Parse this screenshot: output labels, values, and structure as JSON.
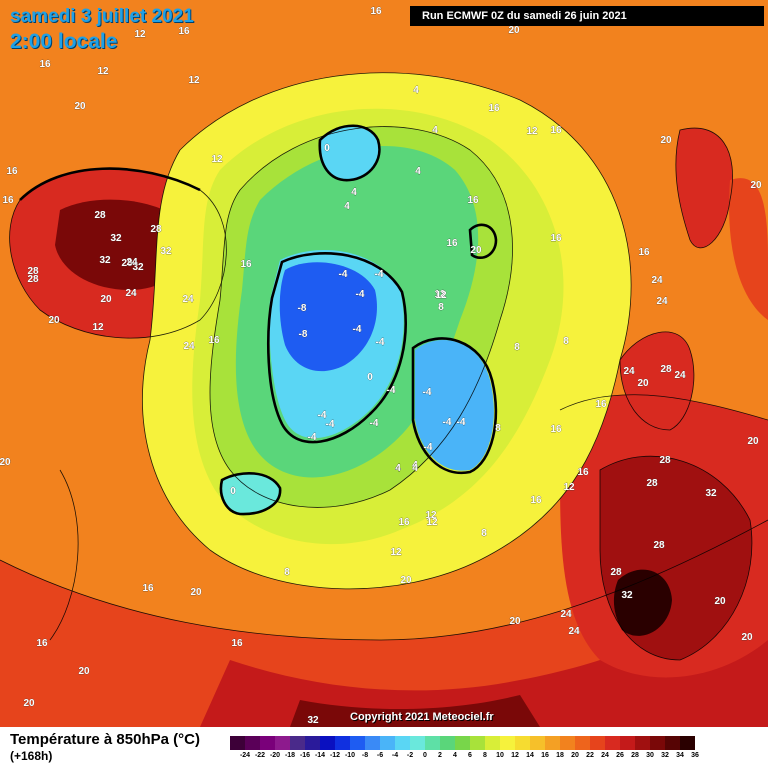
{
  "header": {
    "date": "samedi 3 juillet 2021",
    "time": "2:00 locale",
    "run": "Run ECMWF 0Z du samedi 26 juin 2021"
  },
  "copyright": "Copyright 2021 Meteociel.fr",
  "legend": {
    "title": "Température à 850hPa (°C)",
    "subtitle": "(+168h)",
    "ticks": [
      "-24",
      "-22",
      "-20",
      "-18",
      "-16",
      "-14",
      "-12",
      "-10",
      "-8",
      "-6",
      "-4",
      "-2",
      "0",
      "2",
      "4",
      "6",
      "8",
      "10",
      "12",
      "14",
      "16",
      "18",
      "20",
      "22",
      "24",
      "26",
      "28",
      "30",
      "32",
      "34",
      "36"
    ],
    "colors": [
      "#3d0038",
      "#5a0058",
      "#7a007a",
      "#8d1a8d",
      "#4a2a8a",
      "#2a1a9a",
      "#0a10c0",
      "#1030e0",
      "#1e5cf2",
      "#3a8af6",
      "#4ab4f8",
      "#5ad6f4",
      "#6ae8dc",
      "#5ee0a6",
      "#5ad67a",
      "#78d64a",
      "#a8e23a",
      "#d8ee38",
      "#f6f23c",
      "#f6dc30",
      "#f6c02a",
      "#f4a024",
      "#f2821e",
      "#ee641c",
      "#e6441c",
      "#d82a20",
      "#c41a1a",
      "#a01010",
      "#7a0808",
      "#560404",
      "#2a0000"
    ]
  },
  "map_labels": [
    {
      "t": "16"
    },
    {
      "t": "12"
    },
    {
      "t": "16"
    },
    {
      "t": "12"
    },
    {
      "t": "16"
    },
    {
      "t": "12"
    },
    {
      "t": "20"
    },
    {
      "t": "20"
    },
    {
      "t": "16"
    },
    {
      "t": "16"
    },
    {
      "t": "12"
    },
    {
      "t": "12"
    },
    {
      "t": "16"
    },
    {
      "t": "16"
    },
    {
      "t": "20"
    },
    {
      "t": "28"
    },
    {
      "t": "32"
    },
    {
      "t": "28"
    },
    {
      "t": "28"
    },
    {
      "t": "32"
    },
    {
      "t": "32"
    },
    {
      "t": "28"
    },
    {
      "t": "32"
    },
    {
      "t": "28"
    },
    {
      "t": "24"
    },
    {
      "t": "24"
    },
    {
      "t": "20"
    },
    {
      "t": "20"
    },
    {
      "t": "12"
    },
    {
      "t": "24"
    },
    {
      "t": "16"
    },
    {
      "t": "16"
    },
    {
      "t": "4"
    },
    {
      "t": "4"
    },
    {
      "t": "0"
    },
    {
      "t": "4"
    },
    {
      "t": "4"
    },
    {
      "t": "4"
    },
    {
      "t": "4"
    },
    {
      "t": "4"
    },
    {
      "t": "12"
    },
    {
      "t": "12"
    },
    {
      "t": "20"
    },
    {
      "t": "20"
    },
    {
      "t": "16"
    },
    {
      "t": "16"
    },
    {
      "t": "16"
    },
    {
      "t": "16"
    },
    {
      "t": "12"
    },
    {
      "t": "8"
    },
    {
      "t": "8"
    },
    {
      "t": "8"
    },
    {
      "t": "-4"
    },
    {
      "t": "-4"
    },
    {
      "t": "-8"
    },
    {
      "t": "-8"
    },
    {
      "t": "-4"
    },
    {
      "t": "-4"
    },
    {
      "t": "-4"
    },
    {
      "t": "0"
    },
    {
      "t": "-4"
    },
    {
      "t": "-4"
    },
    {
      "t": "-4"
    },
    {
      "t": "-4"
    },
    {
      "t": "-4"
    },
    {
      "t": "-4"
    },
    {
      "t": "-4"
    },
    {
      "t": "-4"
    },
    {
      "t": "-4"
    },
    {
      "t": "0"
    },
    {
      "t": "4"
    },
    {
      "t": "4"
    },
    {
      "t": "16"
    },
    {
      "t": "12"
    },
    {
      "t": "12"
    },
    {
      "t": "8"
    },
    {
      "t": "8"
    },
    {
      "t": "16"
    },
    {
      "t": "12"
    },
    {
      "t": "16"
    },
    {
      "t": "8"
    },
    {
      "t": "24"
    },
    {
      "t": "24"
    },
    {
      "t": "24"
    },
    {
      "t": "28"
    },
    {
      "t": "24"
    },
    {
      "t": "20"
    },
    {
      "t": "16"
    },
    {
      "t": "16"
    },
    {
      "t": "20"
    },
    {
      "t": "20"
    },
    {
      "t": "20"
    },
    {
      "t": "28"
    },
    {
      "t": "28"
    },
    {
      "t": "32"
    },
    {
      "t": "28"
    },
    {
      "t": "28"
    },
    {
      "t": "32"
    },
    {
      "t": "20"
    },
    {
      "t": "20"
    },
    {
      "t": "24"
    },
    {
      "t": "24"
    },
    {
      "t": "20"
    },
    {
      "t": "16"
    },
    {
      "t": "16"
    },
    {
      "t": "16"
    },
    {
      "t": "20"
    },
    {
      "t": "20"
    },
    {
      "t": "24"
    },
    {
      "t": "32"
    },
    {
      "t": "20"
    }
  ]
}
